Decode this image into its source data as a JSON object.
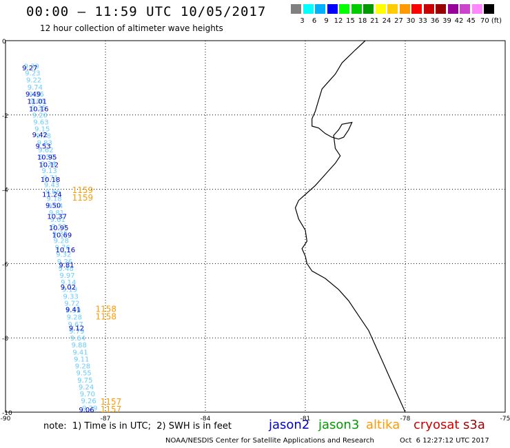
{
  "header": {
    "title": "00:00 – 11:59 UTC 10/05/2017",
    "subtitle": "12 hour collection of altimeter wave heights"
  },
  "legend": {
    "colors": [
      "#808080",
      "#00ffff",
      "#00b0ff",
      "#0000ff",
      "#00ff00",
      "#00cc00",
      "#009900",
      "#ffff00",
      "#ffcc00",
      "#ff9900",
      "#ff0000",
      "#cc0000",
      "#990000",
      "#990099",
      "#cc44cc",
      "#ff88ff",
      "#000000"
    ],
    "labels": [
      "",
      "3",
      "6",
      "9",
      "12",
      "15",
      "18",
      "21",
      "24",
      "27",
      "30",
      "33",
      "36",
      "39",
      "42",
      "45",
      "70 (ft)"
    ]
  },
  "axes": {
    "x_ticks": [
      "-90",
      "-87",
      "-84",
      "-81",
      "-78",
      "-75"
    ],
    "y_ticks": [
      "0",
      "-2",
      "-4",
      "-6",
      "-8",
      "-10"
    ],
    "xlim": [
      -90,
      -75
    ],
    "ylim": [
      -10,
      0
    ]
  },
  "chart_data": {
    "type": "scatter",
    "title": "00:00 – 11:59 UTC 10/05/2017",
    "subtitle": "12 hour collection of altimeter wave heights",
    "xlim": [
      -90,
      -75
    ],
    "ylim": [
      -10,
      0
    ],
    "grid": true,
    "units": "ft",
    "series": [
      {
        "name": "jason2",
        "color": "#0000cc",
        "points": [
          {
            "lon": -89.5,
            "lat": -0.8,
            "label": "9.27"
          },
          {
            "lon": -89.4,
            "lat": -1.5,
            "label": "9.49"
          },
          {
            "lon": -89.35,
            "lat": -1.7,
            "label": "11.01"
          },
          {
            "lon": -89.3,
            "lat": -1.9,
            "label": "10.16"
          },
          {
            "lon": -89.2,
            "lat": -2.6,
            "label": "9.42"
          },
          {
            "lon": -89.1,
            "lat": -2.9,
            "label": "9.53"
          },
          {
            "lon": -89.05,
            "lat": -3.2,
            "label": "10.95"
          },
          {
            "lon": -89.0,
            "lat": -3.4,
            "label": "10.12"
          },
          {
            "lon": -88.95,
            "lat": -3.8,
            "label": "10.18"
          },
          {
            "lon": -88.9,
            "lat": -4.2,
            "label": "11.24"
          },
          {
            "lon": -88.8,
            "lat": -4.5,
            "label": "9.50"
          },
          {
            "lon": -88.75,
            "lat": -4.8,
            "label": "10.37"
          },
          {
            "lon": -88.7,
            "lat": -5.1,
            "label": "10.95"
          },
          {
            "lon": -88.6,
            "lat": -5.3,
            "label": "10.69"
          },
          {
            "lon": -88.5,
            "lat": -5.7,
            "label": "10.16"
          },
          {
            "lon": -88.4,
            "lat": -6.1,
            "label": "9.81"
          },
          {
            "lon": -88.35,
            "lat": -6.7,
            "label": "9.02"
          },
          {
            "lon": -88.2,
            "lat": -7.3,
            "label": "9.41"
          },
          {
            "lon": -88.1,
            "lat": -7.8,
            "label": "9.12"
          },
          {
            "lon": -87.8,
            "lat": -10.0,
            "label": "9.06"
          }
        ]
      },
      {
        "name": "jason3",
        "color": "#009900",
        "points": []
      },
      {
        "name": "altika",
        "color": "#ff9900",
        "points": [
          {
            "lon": -88.0,
            "lat": -4.1,
            "label": "1159"
          },
          {
            "lon": -88.0,
            "lat": -4.3,
            "label": "1159"
          },
          {
            "lon": -87.3,
            "lat": -7.3,
            "label": "1158"
          },
          {
            "lon": -87.3,
            "lat": -7.5,
            "label": "1158"
          },
          {
            "lon": -87.15,
            "lat": -9.8,
            "label": "1157"
          },
          {
            "lon": -87.15,
            "lat": -10.0,
            "label": "1157"
          }
        ]
      },
      {
        "name": "cryosat",
        "color": "#cc0000",
        "points": []
      },
      {
        "name": "s3a",
        "color": "#990000",
        "points": []
      }
    ],
    "track_labels_light": [
      "9.39",
      "9.23",
      "9.22",
      "9.74",
      "9.36",
      "9.06",
      "9.35",
      "9.20",
      "9.63",
      "9.15",
      "9.78",
      "9.83",
      "9.62",
      "9.50",
      "9.34",
      "9.13",
      "9.71",
      "9.43",
      "9.66",
      "9.18",
      "9.04",
      "9.81",
      "9.61",
      "9.53",
      "9.35",
      "9.28",
      "9.76",
      "9.32",
      "9.26",
      "9.48",
      "9.97",
      "9.14",
      "9.19",
      "9.33",
      "9.72",
      "9.59",
      "9.28",
      "9.67",
      "9.79",
      "9.64",
      "9.88",
      "9.41",
      "9.11",
      "9.28",
      "9.55",
      "9.75",
      "9.24",
      "9.70",
      "9.26",
      "9.29"
    ]
  },
  "footer": {
    "note": "note:  1) Time is in UTC;  2) SWH is in feet",
    "satellites": [
      "jason2",
      "jason3",
      "altika",
      "cryosat",
      "s3a"
    ],
    "sat_colors": [
      "#0000cc",
      "#009900",
      "#ff9900",
      "#cc0000",
      "#990000"
    ],
    "credit": "NOAA/NESDIS Center for Satellite Applications and Research",
    "timestamp": "Oct  6 12:27:12 UTC 2017"
  }
}
